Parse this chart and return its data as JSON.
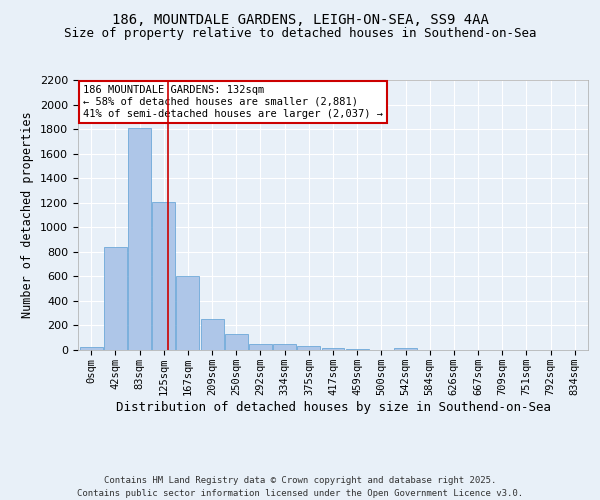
{
  "title1": "186, MOUNTDALE GARDENS, LEIGH-ON-SEA, SS9 4AA",
  "title2": "Size of property relative to detached houses in Southend-on-Sea",
  "xlabel": "Distribution of detached houses by size in Southend-on-Sea",
  "ylabel": "Number of detached properties",
  "bar_labels": [
    "0sqm",
    "42sqm",
    "83sqm",
    "125sqm",
    "167sqm",
    "209sqm",
    "250sqm",
    "292sqm",
    "334sqm",
    "375sqm",
    "417sqm",
    "459sqm",
    "500sqm",
    "542sqm",
    "584sqm",
    "626sqm",
    "667sqm",
    "709sqm",
    "751sqm",
    "792sqm",
    "834sqm"
  ],
  "bar_values": [
    25,
    840,
    1810,
    1210,
    600,
    255,
    130,
    50,
    45,
    30,
    20,
    5,
    0,
    18,
    0,
    0,
    0,
    0,
    0,
    0,
    0
  ],
  "bar_color": "#aec6e8",
  "bar_edge_color": "#5a9fd4",
  "ylim": [
    0,
    2200
  ],
  "yticks": [
    0,
    200,
    400,
    600,
    800,
    1000,
    1200,
    1400,
    1600,
    1800,
    2000,
    2200
  ],
  "annotation_text": "186 MOUNTDALE GARDENS: 132sqm\n← 58% of detached houses are smaller (2,881)\n41% of semi-detached houses are larger (2,037) →",
  "footer": "Contains HM Land Registry data © Crown copyright and database right 2025.\nContains public sector information licensed under the Open Government Licence v3.0.",
  "background_color": "#e8f0f8",
  "grid_color": "#ffffff"
}
